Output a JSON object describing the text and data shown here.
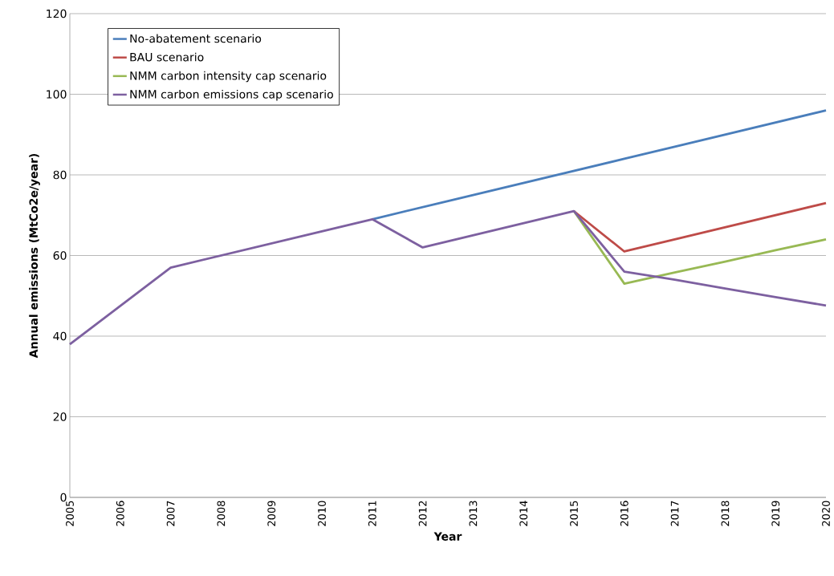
{
  "chart_data": {
    "type": "line",
    "xlabel": "Year",
    "ylabel": "Annual emissions  (MtCo2e/year)",
    "categories": [
      "2005",
      "2006",
      "2007",
      "2008",
      "2009",
      "2010",
      "2011",
      "2012",
      "2013",
      "2014",
      "2015",
      "2016",
      "2017",
      "2018",
      "2019",
      "2020"
    ],
    "series": [
      {
        "name": "No-abatement scenario",
        "color": "#4a7ebb",
        "values": [
          null,
          null,
          null,
          null,
          null,
          null,
          69,
          72,
          75,
          78,
          81,
          84,
          87,
          90,
          93,
          96
        ]
      },
      {
        "name": "BAU scenario",
        "color": "#be4b48",
        "values": [
          null,
          null,
          null,
          null,
          null,
          null,
          null,
          null,
          null,
          null,
          71,
          61,
          64,
          67,
          70,
          73
        ]
      },
      {
        "name": "NMM carbon intensity cap scenario",
        "color": "#98b954",
        "values": [
          null,
          null,
          null,
          null,
          null,
          null,
          null,
          null,
          null,
          null,
          71,
          53,
          55.8,
          58.5,
          61.3,
          64
        ]
      },
      {
        "name": "NMM carbon emissions cap scenario",
        "color": "#7d60a0",
        "values": [
          38,
          47.5,
          57,
          60,
          63,
          66,
          69,
          62,
          65,
          68,
          71,
          56,
          54,
          51.8,
          49.7,
          47.6
        ]
      }
    ],
    "ylim": [
      0,
      120
    ],
    "yticks": [
      0,
      20,
      40,
      60,
      80,
      100,
      120
    ],
    "grid": "y",
    "legend": "top left",
    "line_style": "solid",
    "marker": "none"
  }
}
